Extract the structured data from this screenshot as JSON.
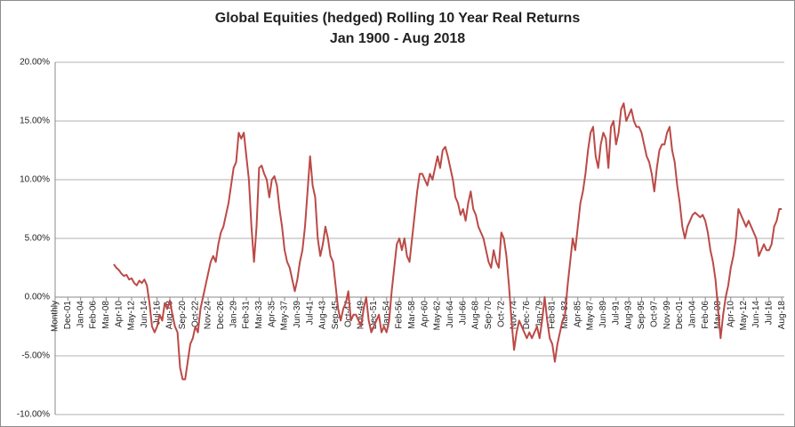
{
  "chart_data": {
    "type": "line",
    "title": "Global Equities (hedged) Rolling 10 Year Real Returns",
    "subtitle": "Jan 1900 - Aug 2018",
    "categories": [
      "Monthly",
      null,
      null,
      null,
      null,
      "Dec-01",
      null,
      null,
      null,
      null,
      "Jan-04",
      null,
      null,
      null,
      null,
      "Feb-06",
      null,
      null,
      null,
      null,
      "Mar-08",
      null,
      null,
      null,
      null,
      "Apr-10",
      null,
      null,
      null,
      null,
      "May-12",
      null,
      null,
      null,
      null,
      "Jun-14",
      null,
      null,
      null,
      null,
      "Jul-16",
      null,
      null,
      null,
      null,
      "Aug-18",
      null,
      null,
      null,
      null,
      "Sep-20",
      null,
      null,
      null,
      null,
      "Oct-22",
      null,
      null,
      null,
      null,
      "Nov-24",
      null,
      null,
      null,
      null,
      "Dec-26",
      null,
      null,
      null,
      null,
      "Jan-29",
      null,
      null,
      null,
      null,
      "Feb-31",
      null,
      null,
      null,
      null,
      "Mar-33",
      null,
      null,
      null,
      null,
      "Apr-35",
      null,
      null,
      null,
      null,
      "May-37",
      null,
      null,
      null,
      null,
      "Jun-39",
      null,
      null,
      null,
      null,
      "Jul-41",
      null,
      null,
      null,
      null,
      "Aug-43",
      null,
      null,
      null,
      null,
      "Sep-45",
      null,
      null,
      null,
      null,
      "Oct-47",
      null,
      null,
      null,
      null,
      "Nov-49",
      null,
      null,
      null,
      null,
      "Dec-51",
      null,
      null,
      null,
      null,
      "Jan-54",
      null,
      null,
      null,
      null,
      "Feb-56",
      null,
      null,
      null,
      null,
      "Mar-58",
      null,
      null,
      null,
      null,
      "Apr-60",
      null,
      null,
      null,
      null,
      "May-62",
      null,
      null,
      null,
      null,
      "Jun-64",
      null,
      null,
      null,
      null,
      "Jul-66",
      null,
      null,
      null,
      null,
      "Aug-68",
      null,
      null,
      null,
      null,
      "Sep-70",
      null,
      null,
      null,
      null,
      "Oct-72",
      null,
      null,
      null,
      null,
      "Nov-74",
      null,
      null,
      null,
      null,
      "Dec-76",
      null,
      null,
      null,
      null,
      "Jan-79",
      null,
      null,
      null,
      null,
      "Feb-81",
      null,
      null,
      null,
      null,
      "Mar-83",
      null,
      null,
      null,
      null,
      "Apr-85",
      null,
      null,
      null,
      null,
      "May-87",
      null,
      null,
      null,
      null,
      "Jun-89",
      null,
      null,
      null,
      null,
      "Jul-91",
      null,
      null,
      null,
      null,
      "Aug-93",
      null,
      null,
      null,
      null,
      "Sep-95",
      null,
      null,
      null,
      null,
      "Oct-97",
      null,
      null,
      null,
      null,
      "Nov-99",
      null,
      null,
      null,
      null,
      "Dec-01",
      null,
      null,
      null,
      null,
      "Jan-04",
      null,
      null,
      null,
      null,
      "Feb-06",
      null,
      null,
      null,
      null,
      "Mar-08",
      null,
      null,
      null,
      null,
      "Apr-10",
      null,
      null,
      null,
      null,
      "May-12",
      null,
      null,
      null,
      null,
      "Jun-14",
      null,
      null,
      null,
      null,
      "Jul-16",
      null,
      null,
      null,
      null,
      "Aug-18"
    ],
    "series": [
      {
        "name": "Global Equities (hedged)",
        "color": "#bb4a47",
        "values": [
          null,
          null,
          null,
          null,
          null,
          null,
          null,
          null,
          null,
          null,
          null,
          null,
          null,
          null,
          null,
          null,
          null,
          null,
          null,
          null,
          null,
          null,
          null,
          2.8,
          2.5,
          2.3,
          2.0,
          1.8,
          1.9,
          1.5,
          1.6,
          1.2,
          1.0,
          1.4,
          1.2,
          1.5,
          1.0,
          -0.5,
          -2.5,
          -3.0,
          -2.5,
          -1.5,
          -2.0,
          -0.5,
          -1.0,
          -0.3,
          -1.5,
          -2.5,
          -3.0,
          -6.0,
          -7.0,
          -7.0,
          -5.5,
          -4.0,
          -3.5,
          -2.5,
          -3.0,
          -1.0,
          0.0,
          1.0,
          2.0,
          3.0,
          3.5,
          3.0,
          4.5,
          5.5,
          6.0,
          7.0,
          8.0,
          9.5,
          11.0,
          11.5,
          14.0,
          13.5,
          14.0,
          12.0,
          10.0,
          6.0,
          3.0,
          6.0,
          11.0,
          11.2,
          10.5,
          10.0,
          8.5,
          10.0,
          10.3,
          9.5,
          7.5,
          6.0,
          4.0,
          3.0,
          2.5,
          1.5,
          0.5,
          1.5,
          3.0,
          4.0,
          6.0,
          9.0,
          12.0,
          9.5,
          8.5,
          5.0,
          3.5,
          4.5,
          6.0,
          5.0,
          3.5,
          3.0,
          1.0,
          -1.0,
          -2.0,
          -1.0,
          -0.5,
          0.5,
          -2.0,
          -1.5,
          -1.5,
          -2.0,
          -2.5,
          -1.0,
          0.0,
          -2.0,
          -3.0,
          -2.5,
          -2.0,
          -1.5,
          -3.0,
          -2.5,
          -3.0,
          -2.0,
          0.5,
          2.5,
          4.5,
          5.0,
          4.0,
          5.0,
          3.5,
          3.0,
          5.0,
          7.0,
          9.0,
          10.5,
          10.5,
          10.0,
          9.5,
          10.5,
          10.0,
          11.0,
          12.0,
          11.0,
          12.5,
          12.8,
          12.0,
          11.0,
          10.0,
          8.5,
          8.0,
          7.0,
          7.5,
          6.5,
          8.0,
          9.0,
          7.5,
          7.0,
          6.0,
          5.5,
          5.0,
          4.0,
          3.0,
          2.5,
          4.0,
          3.0,
          2.5,
          5.5,
          5.0,
          3.5,
          1.0,
          -2.0,
          -4.5,
          -3.0,
          -2.0,
          -2.5,
          -3.0,
          -3.5,
          -3.0,
          -3.5,
          -3.0,
          -2.5,
          -3.5,
          -2.0,
          0.0,
          -2.0,
          -3.5,
          -4.0,
          -5.5,
          -4.0,
          -3.0,
          -2.0,
          -1.5,
          1.0,
          3.0,
          5.0,
          4.0,
          6.0,
          8.0,
          9.0,
          10.5,
          12.5,
          14.0,
          14.5,
          12.0,
          11.0,
          13.0,
          14.0,
          13.5,
          11.0,
          14.5,
          15.0,
          13.0,
          14.0,
          16.0,
          16.5,
          15.0,
          15.5,
          16.0,
          15.0,
          14.5,
          14.5,
          14.0,
          13.0,
          12.0,
          11.5,
          10.5,
          9.0,
          11.0,
          12.5,
          13.0,
          13.0,
          14.0,
          14.5,
          12.5,
          11.5,
          9.5,
          8.0,
          6.0,
          5.0,
          6.0,
          6.5,
          7.0,
          7.2,
          7.0,
          6.8,
          7.0,
          6.5,
          5.5,
          4.0,
          3.0,
          1.5,
          -1.0,
          -3.5,
          -1.5,
          0.0,
          1.0,
          2.5,
          3.5,
          5.0,
          7.5,
          7.0,
          6.5,
          6.0,
          6.5,
          6.0,
          5.5,
          5.0,
          3.5,
          4.0,
          4.5,
          4.0,
          4.0,
          4.5,
          6.0,
          6.5,
          7.5,
          7.5
        ]
      }
    ],
    "ylim": [
      -10,
      20
    ],
    "yticks": [
      {
        "value": -10,
        "label": "-10.00%"
      },
      {
        "value": -5,
        "label": "-5.00%"
      },
      {
        "value": 0,
        "label": "0.00%"
      },
      {
        "value": 5,
        "label": "5.00%"
      },
      {
        "value": 10,
        "label": "10.00%"
      },
      {
        "value": 15,
        "label": "15.00%"
      },
      {
        "value": 20,
        "label": "20.00%"
      }
    ],
    "grid": true
  }
}
